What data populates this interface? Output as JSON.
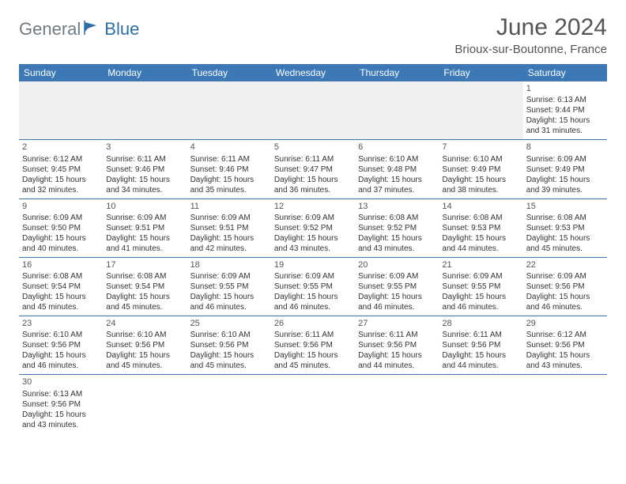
{
  "brand": {
    "part1": "General",
    "part2": "Blue"
  },
  "title": "June 2024",
  "location": "Brioux-sur-Boutonne, France",
  "header_bg": "#3b78b5",
  "dow": [
    "Sunday",
    "Monday",
    "Tuesday",
    "Wednesday",
    "Thursday",
    "Friday",
    "Saturday"
  ],
  "days": {
    "1": {
      "sr": "6:13 AM",
      "ss": "9:44 PM",
      "dl1": "15 hours",
      "dl2": "and 31 minutes."
    },
    "2": {
      "sr": "6:12 AM",
      "ss": "9:45 PM",
      "dl1": "15 hours",
      "dl2": "and 32 minutes."
    },
    "3": {
      "sr": "6:11 AM",
      "ss": "9:46 PM",
      "dl1": "15 hours",
      "dl2": "and 34 minutes."
    },
    "4": {
      "sr": "6:11 AM",
      "ss": "9:46 PM",
      "dl1": "15 hours",
      "dl2": "and 35 minutes."
    },
    "5": {
      "sr": "6:11 AM",
      "ss": "9:47 PM",
      "dl1": "15 hours",
      "dl2": "and 36 minutes."
    },
    "6": {
      "sr": "6:10 AM",
      "ss": "9:48 PM",
      "dl1": "15 hours",
      "dl2": "and 37 minutes."
    },
    "7": {
      "sr": "6:10 AM",
      "ss": "9:49 PM",
      "dl1": "15 hours",
      "dl2": "and 38 minutes."
    },
    "8": {
      "sr": "6:09 AM",
      "ss": "9:49 PM",
      "dl1": "15 hours",
      "dl2": "and 39 minutes."
    },
    "9": {
      "sr": "6:09 AM",
      "ss": "9:50 PM",
      "dl1": "15 hours",
      "dl2": "and 40 minutes."
    },
    "10": {
      "sr": "6:09 AM",
      "ss": "9:51 PM",
      "dl1": "15 hours",
      "dl2": "and 41 minutes."
    },
    "11": {
      "sr": "6:09 AM",
      "ss": "9:51 PM",
      "dl1": "15 hours",
      "dl2": "and 42 minutes."
    },
    "12": {
      "sr": "6:09 AM",
      "ss": "9:52 PM",
      "dl1": "15 hours",
      "dl2": "and 43 minutes."
    },
    "13": {
      "sr": "6:08 AM",
      "ss": "9:52 PM",
      "dl1": "15 hours",
      "dl2": "and 43 minutes."
    },
    "14": {
      "sr": "6:08 AM",
      "ss": "9:53 PM",
      "dl1": "15 hours",
      "dl2": "and 44 minutes."
    },
    "15": {
      "sr": "6:08 AM",
      "ss": "9:53 PM",
      "dl1": "15 hours",
      "dl2": "and 45 minutes."
    },
    "16": {
      "sr": "6:08 AM",
      "ss": "9:54 PM",
      "dl1": "15 hours",
      "dl2": "and 45 minutes."
    },
    "17": {
      "sr": "6:08 AM",
      "ss": "9:54 PM",
      "dl1": "15 hours",
      "dl2": "and 45 minutes."
    },
    "18": {
      "sr": "6:09 AM",
      "ss": "9:55 PM",
      "dl1": "15 hours",
      "dl2": "and 46 minutes."
    },
    "19": {
      "sr": "6:09 AM",
      "ss": "9:55 PM",
      "dl1": "15 hours",
      "dl2": "and 46 minutes."
    },
    "20": {
      "sr": "6:09 AM",
      "ss": "9:55 PM",
      "dl1": "15 hours",
      "dl2": "and 46 minutes."
    },
    "21": {
      "sr": "6:09 AM",
      "ss": "9:55 PM",
      "dl1": "15 hours",
      "dl2": "and 46 minutes."
    },
    "22": {
      "sr": "6:09 AM",
      "ss": "9:56 PM",
      "dl1": "15 hours",
      "dl2": "and 46 minutes."
    },
    "23": {
      "sr": "6:10 AM",
      "ss": "9:56 PM",
      "dl1": "15 hours",
      "dl2": "and 46 minutes."
    },
    "24": {
      "sr": "6:10 AM",
      "ss": "9:56 PM",
      "dl1": "15 hours",
      "dl2": "and 45 minutes."
    },
    "25": {
      "sr": "6:10 AM",
      "ss": "9:56 PM",
      "dl1": "15 hours",
      "dl2": "and 45 minutes."
    },
    "26": {
      "sr": "6:11 AM",
      "ss": "9:56 PM",
      "dl1": "15 hours",
      "dl2": "and 45 minutes."
    },
    "27": {
      "sr": "6:11 AM",
      "ss": "9:56 PM",
      "dl1": "15 hours",
      "dl2": "and 44 minutes."
    },
    "28": {
      "sr": "6:11 AM",
      "ss": "9:56 PM",
      "dl1": "15 hours",
      "dl2": "and 44 minutes."
    },
    "29": {
      "sr": "6:12 AM",
      "ss": "9:56 PM",
      "dl1": "15 hours",
      "dl2": "and 43 minutes."
    },
    "30": {
      "sr": "6:13 AM",
      "ss": "9:56 PM",
      "dl1": "15 hours",
      "dl2": "and 43 minutes."
    }
  },
  "labels": {
    "sunrise": "Sunrise:",
    "sunset": "Sunset:",
    "daylight": "Daylight:"
  },
  "layout": {
    "first_dow": 6,
    "ndays": 30,
    "cols": 7
  }
}
